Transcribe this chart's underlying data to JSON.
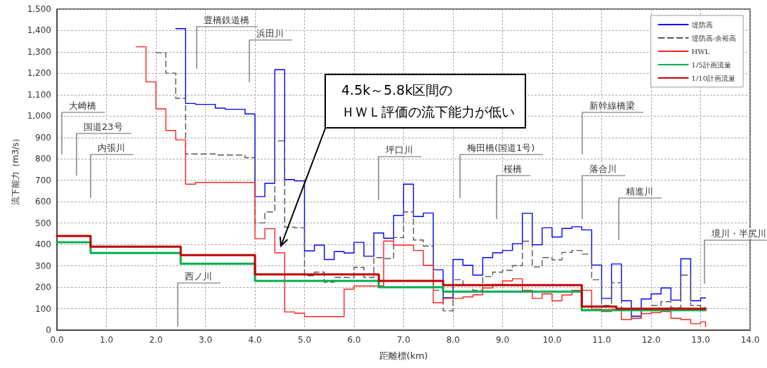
{
  "chart_data": {
    "type": "step",
    "xlabel": "距離標(km)",
    "ylabel": "流下能力（m3/s）",
    "xlim": [
      0,
      14
    ],
    "xticks": [
      {
        "value": 0,
        "label": "0.0"
      },
      {
        "value": 1,
        "label": "1.0"
      },
      {
        "value": 2,
        "label": "2.0"
      },
      {
        "value": 3,
        "label": "3.0"
      },
      {
        "value": 4,
        "label": "4.0"
      },
      {
        "value": 5,
        "label": "5.0"
      },
      {
        "value": 6,
        "label": "6.0"
      },
      {
        "value": 7,
        "label": "7.0"
      },
      {
        "value": 8,
        "label": "8.0"
      },
      {
        "value": 9,
        "label": "9.0"
      },
      {
        "value": 10,
        "label": "10.0"
      },
      {
        "value": 11,
        "label": "11.0"
      },
      {
        "value": 12,
        "label": "12.0"
      },
      {
        "value": 13,
        "label": "13.0"
      },
      {
        "value": 14,
        "label": "14.0"
      }
    ],
    "ylim": [
      0,
      1500
    ],
    "yticks": [
      0,
      100,
      200,
      300,
      400,
      500,
      600,
      700,
      800,
      900,
      {
        "value": 1000,
        "label": "1,000"
      },
      {
        "value": 1100,
        "label": "1,100"
      },
      {
        "value": 1200,
        "label": "1,200"
      },
      {
        "value": 1300,
        "label": "1,300"
      },
      {
        "value": 1400,
        "label": "1,400"
      },
      {
        "value": 1500,
        "label": "1,500"
      }
    ],
    "grid": true,
    "legend": "top right",
    "line_style": "solid",
    "series": [
      {
        "name": "堤防高",
        "color": "#0000ff",
        "x": [
          2.4,
          2.6,
          2.8,
          3.2,
          3.4,
          3.8,
          4.0,
          4.2,
          4.4,
          4.6,
          4.8,
          5.0,
          5.2,
          5.4,
          5.6,
          5.8,
          6.0,
          6.2,
          6.4,
          6.6,
          6.8,
          7.0,
          7.2,
          7.4,
          7.6,
          7.8,
          8.0,
          8.2,
          8.4,
          8.6,
          8.8,
          9.0,
          9.2,
          9.4,
          9.6,
          9.8,
          10.0,
          10.2,
          10.4,
          10.6,
          10.8,
          11.0,
          11.2,
          11.4,
          11.6,
          11.8,
          12.0,
          12.2,
          12.4,
          12.6,
          12.8,
          13.0,
          13.1
        ],
        "values": [
          1409,
          1059,
          1055,
          1037,
          1032,
          1010,
          624,
          686,
          1217,
          703,
          697,
          370,
          397,
          330,
          367,
          360,
          410,
          345,
          454,
          429,
          536,
          682,
          531,
          547,
          282,
          151,
          330,
          303,
          257,
          339,
          361,
          372,
          404,
          546,
          399,
          478,
          435,
          475,
          483,
          468,
          304,
          148,
          309,
          137,
          65,
          145,
          169,
          197,
          140,
          333,
          137,
          150,
          150
        ]
      },
      {
        "name": "堤防高-余裕高",
        "color": "#555555",
        "line_style": "dashed",
        "x": [
          2.0,
          2.2,
          2.4,
          2.6,
          3.2,
          3.8,
          4.0,
          4.2,
          4.4,
          4.6,
          4.8,
          5.0,
          5.2,
          5.4,
          5.6,
          5.8,
          6.0,
          6.2,
          6.4,
          6.6,
          6.8,
          7.0,
          7.2,
          7.4,
          7.6,
          7.8,
          8.0,
          8.2,
          8.4,
          8.6,
          8.8,
          9.0,
          9.2,
          9.4,
          9.6,
          9.8,
          10.0,
          10.2,
          10.4,
          10.6,
          10.8,
          11.0,
          11.2,
          11.4,
          11.6,
          11.8,
          12.0,
          12.2,
          12.4,
          12.6,
          12.8,
          13.0,
          13.1
        ],
        "values": [
          1296,
          1201,
          1083,
          823,
          818,
          806,
          501,
          552,
          884,
          481,
          478,
          254,
          271,
          224,
          246,
          244,
          293,
          246,
          339,
          334,
          432,
          552,
          421,
          392,
          186,
          90,
          235,
          210,
          186,
          250,
          271,
          279,
          301,
          415,
          295,
          339,
          328,
          363,
          372,
          355,
          235,
          115,
          221,
          93,
          55,
          98,
          115,
          133,
          104,
          257,
          115,
          104,
          104
        ]
      },
      {
        "name": "HWL",
        "color": "#ff2020",
        "x": [
          1.6,
          1.8,
          2.0,
          2.2,
          2.4,
          2.6,
          2.8,
          4.0,
          4.2,
          4.4,
          4.6,
          4.8,
          5.0,
          5.8,
          6.0,
          6.6,
          6.8,
          7.2,
          7.4,
          7.6,
          7.8,
          8.2,
          8.4,
          8.6,
          8.8,
          9.0,
          9.2,
          9.4,
          9.6,
          9.8,
          10.0,
          10.2,
          10.4,
          10.8,
          11.0,
          11.2,
          11.4,
          11.6,
          11.8,
          12.0,
          12.2,
          12.4,
          12.6,
          12.8,
          13.0,
          13.1
        ],
        "values": [
          1324,
          1160,
          1034,
          933,
          889,
          682,
          690,
          427,
          474,
          361,
          85,
          79,
          63,
          191,
          206,
          416,
          397,
          372,
          303,
          128,
          148,
          155,
          165,
          197,
          213,
          230,
          240,
          186,
          148,
          169,
          137,
          164,
          186,
          98,
          87,
          98,
          49,
          55,
          77,
          82,
          87,
          55,
          49,
          30,
          38,
          16
        ]
      },
      {
        "name": "1/5計画流量",
        "color": "#00b050",
        "x": [
          0,
          0.68,
          2.5,
          4.0,
          6.5,
          7.8,
          10.6,
          13.1
        ],
        "values": [
          410,
          360,
          310,
          230,
          200,
          180,
          93,
          93
        ]
      },
      {
        "name": "1/10計画流量",
        "color": "#c00000",
        "x": [
          0,
          0.68,
          2.5,
          4.0,
          6.5,
          7.8,
          10.6,
          11.3,
          13.1
        ],
        "values": [
          440,
          390,
          350,
          260,
          230,
          210,
          110,
          100,
          100
        ]
      }
    ],
    "annotations": [
      "4.5k～5.8k区間の",
      "ＨＷＬ評価の流下能力が低い",
      "大崎橋",
      "国道23号",
      "内張川",
      "豊橋鉄道橋",
      "浜田川",
      "西ノ川",
      "坪口川",
      "梅田橋(国道1号)",
      "桜橋",
      "新幹線橋梁",
      "落合川",
      "精進川",
      "境川・半尻川"
    ]
  }
}
